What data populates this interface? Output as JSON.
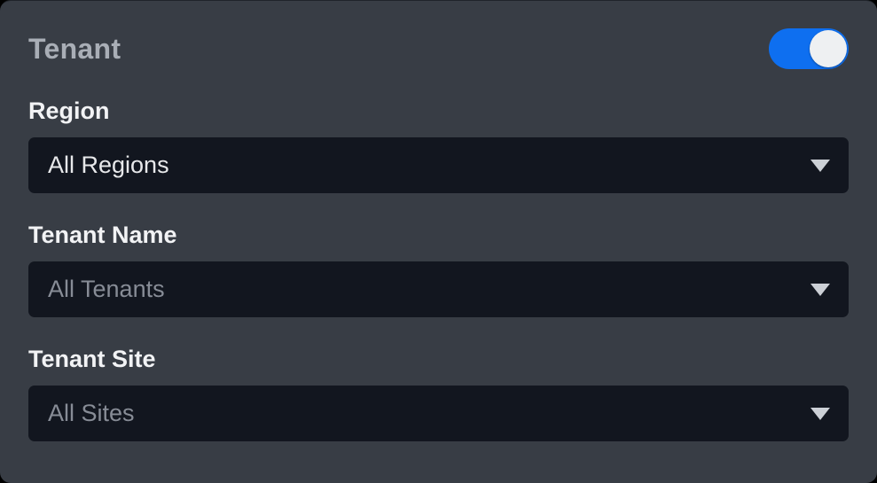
{
  "panel": {
    "title": "Tenant"
  },
  "toggle": {
    "name": "tenant-filter-toggle",
    "state": "on",
    "on_color": "#0e6ff0",
    "knob_color": "#eef0f2"
  },
  "fields": [
    {
      "label": "Region",
      "value": "All Regions",
      "value_style": "bright"
    },
    {
      "label": "Tenant Name",
      "value": "All Tenants",
      "value_style": "muted"
    },
    {
      "label": "Tenant Site",
      "value": "All Sites",
      "value_style": "muted"
    }
  ],
  "icons": {
    "dropdown_caret": "caret-down-icon"
  },
  "colors": {
    "page_background": "#000000",
    "panel_background": "#383d45",
    "dropdown_background": "#12161f",
    "title_text": "#a9aeb6",
    "label_text": "#f2f3f5",
    "value_text_bright": "#e7e8ea",
    "value_text_muted": "#878c96",
    "caret": "#ccd0d6"
  }
}
